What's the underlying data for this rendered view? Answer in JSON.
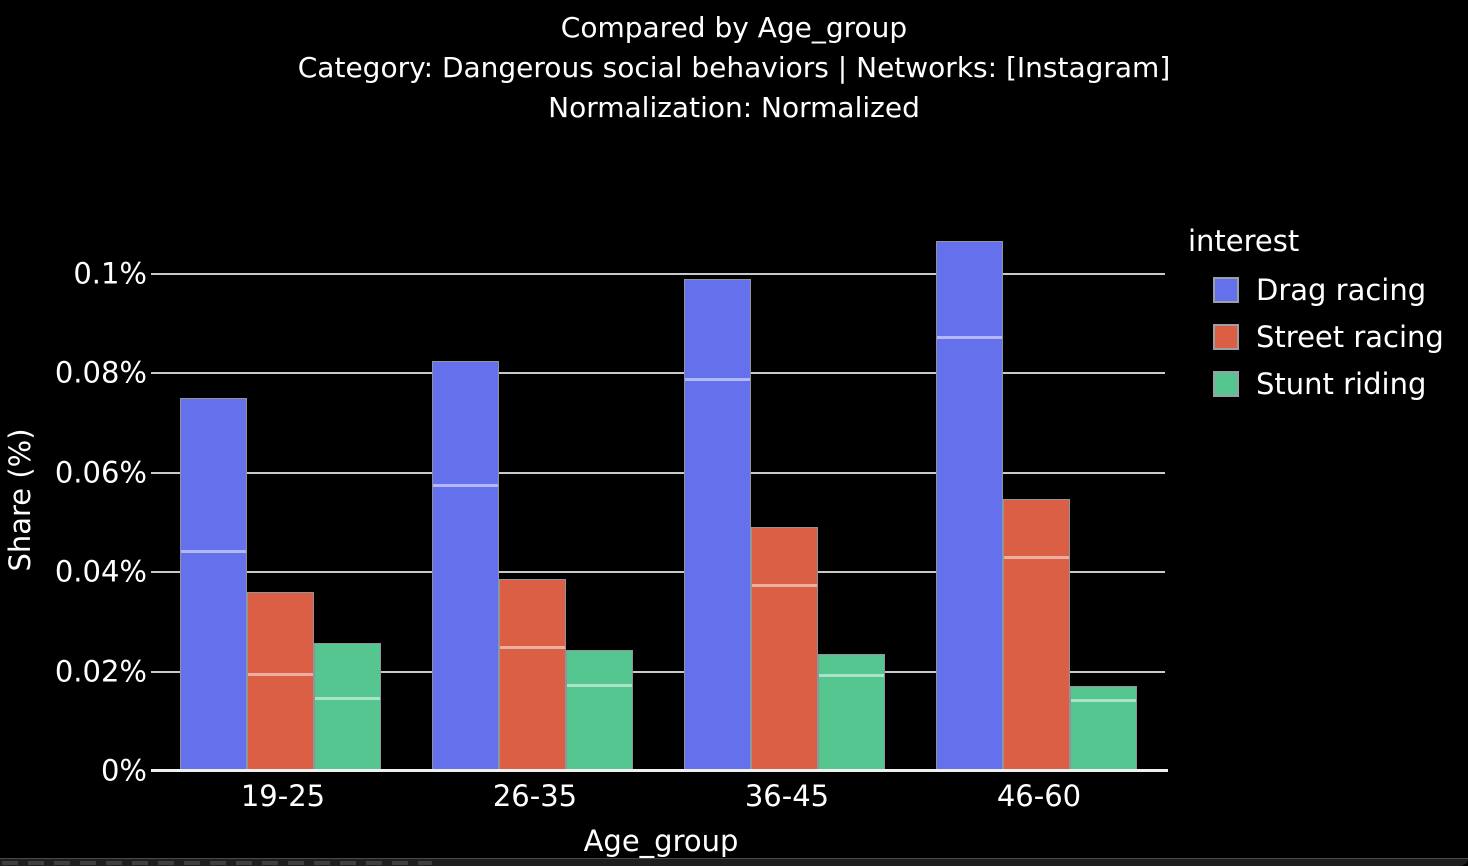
{
  "title": {
    "line1": "Compared by Age_group",
    "line2": "Category: Dangerous social behaviors | Networks: [Instagram]",
    "line3": "Normalization: Normalized"
  },
  "colors": {
    "background": "#000000",
    "text": "#ffffff",
    "gridline": "#c9c9c9",
    "axis_line": "#f0f0f0",
    "bar_border": "#90959c",
    "bar_segment_line": "rgba(255,255,255,0.5)",
    "drag_racing": "#6570EC",
    "street_racing": "#DA5F44",
    "stunt_riding": "#56C690"
  },
  "chart_data": {
    "type": "bar",
    "title": "Compared by Age_group",
    "subtitle": "Category: Dangerous social behaviors | Networks: [Instagram]",
    "subtitle2": "Normalization: Normalized",
    "xlabel": "Age_group",
    "ylabel": "Share (%)",
    "categories": [
      "19-25",
      "26-35",
      "36-45",
      "46-60"
    ],
    "series": [
      {
        "name": "Drag racing",
        "color": "#6570EC",
        "values": [
          0.075,
          0.0825,
          0.099,
          0.1065
        ],
        "segment_boundaries": [
          0.044,
          0.0572,
          0.0785,
          0.087
        ]
      },
      {
        "name": "Street racing",
        "color": "#DA5F44",
        "values": [
          0.036,
          0.0386,
          0.049,
          0.0548
        ],
        "segment_boundaries": [
          0.0192,
          0.0247,
          0.0371,
          0.0428
        ]
      },
      {
        "name": "Stunt riding",
        "color": "#56C690",
        "values": [
          0.0257,
          0.0244,
          0.0235,
          0.017
        ],
        "segment_boundaries": [
          0.0143,
          0.017,
          0.019,
          0.014
        ]
      }
    ],
    "value_unit": "%",
    "ylim": [
      0,
      0.11
    ],
    "yticks": [
      {
        "value": 0,
        "label": "0%"
      },
      {
        "value": 0.02,
        "label": "0.02%"
      },
      {
        "value": 0.04,
        "label": "0.04%"
      },
      {
        "value": 0.06,
        "label": "0.06%"
      },
      {
        "value": 0.08,
        "label": "0.08%"
      },
      {
        "value": 0.1,
        "label": "0.1%"
      }
    ],
    "grid": "horizontal",
    "legend": {
      "title": "interest",
      "position": "right"
    }
  }
}
